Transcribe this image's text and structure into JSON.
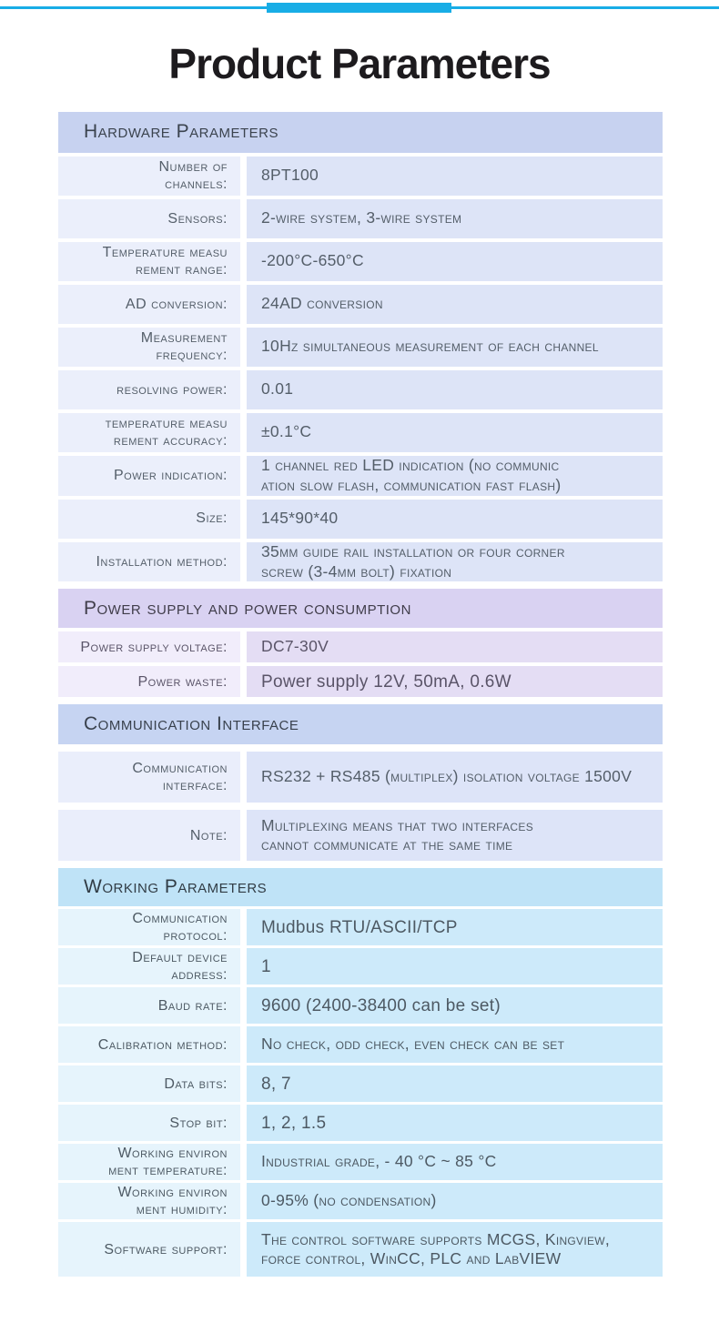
{
  "page": {
    "title": "Product Parameters",
    "accent_color": "#18ade6",
    "background_color": "#ffffff",
    "title_color": "#1d1b1e"
  },
  "sections": [
    {
      "id": "hardware",
      "title": "Hardware Parameters",
      "colors": {
        "header_bg": "#c7d2f0",
        "header_text": "#3b434e",
        "label_bg": "#ebeffb",
        "value_bg": "#dde4f7",
        "text": "#545e69"
      },
      "rows": [
        {
          "label": "Number of\nchannels:",
          "value": "8PT100"
        },
        {
          "label": "Sensors:",
          "value": "2-wire system, 3-wire system"
        },
        {
          "label": "Temperature measu\nrement range:",
          "value": "-200°C-650°C"
        },
        {
          "label": "AD conversion:",
          "value": "24AD conversion"
        },
        {
          "label": "Measurement\nfrequency:",
          "value": "10Hz simultaneous measurement of each channel"
        },
        {
          "label": "resolving power:",
          "value": "0.01"
        },
        {
          "label": "temperature measu\nrement accuracy:",
          "value": "±0.1°C"
        },
        {
          "label": "Power indication:",
          "value": "1 channel red LED indication (no communic\nation slow flash, communication fast flash)"
        },
        {
          "label": "Size:",
          "value": "145*90*40"
        },
        {
          "label": "Installation method:",
          "value": "35mm guide rail installation or four corner\nscrew (3-4mm bolt) fixation"
        }
      ]
    },
    {
      "id": "power",
      "title": "Power supply and power consumption",
      "colors": {
        "header_bg": "#d9d2f2",
        "header_text": "#403d4a",
        "label_bg": "#f1edfb",
        "value_bg": "#e4ddf4",
        "text": "#5a5468"
      },
      "rows": [
        {
          "label": "Power supply voltage:",
          "value": "DC7-30V"
        },
        {
          "label": "Power waste:",
          "value": "Power supply 12V, 50mA, 0.6W",
          "plain": true
        }
      ]
    },
    {
      "id": "comm",
      "title": "Communication Interface",
      "colors": {
        "header_bg": "#c6d4f2",
        "header_text": "#39414d",
        "label_bg": "#eaeefb",
        "value_bg": "#dde4f8",
        "text": "#545e69"
      },
      "rows": [
        {
          "label": "Communication\ninterface:",
          "value": "RS232 + RS485 (multiplex) isolation voltage 1500V"
        },
        {
          "label": "Note:",
          "value": "Multiplexing means that two interfaces\ncannot communicate at the same time"
        }
      ]
    },
    {
      "id": "working",
      "title": "Working Parameters",
      "colors": {
        "header_bg": "#bfe3f7",
        "header_text": "#313c45",
        "label_bg": "#e6f4fc",
        "value_bg": "#cdeafa",
        "text": "#4d5963"
      },
      "rows": [
        {
          "label": "Communication\nprotocol:",
          "value": "Mudbus RTU/ASCII/TCP",
          "plain": true
        },
        {
          "label": "Default device\naddress:",
          "value": "1",
          "plain": true
        },
        {
          "label": "Baud rate:",
          "value": "9600 (2400-38400 can be set)",
          "plain": true
        },
        {
          "label": "Calibration method:",
          "value": "No check, odd check, even check can be set"
        },
        {
          "label": "Data bits:",
          "value": "8, 7",
          "plain": true
        },
        {
          "label": "Stop bit:",
          "value": "1, 2, 1.5",
          "plain": true
        },
        {
          "label": "Working environ\nment temperature:",
          "value": "Industrial grade, - 40 °C ~ 85 °C"
        },
        {
          "label": "Working environ\nment humidity:",
          "value": "0-95% (no condensation)"
        },
        {
          "label": "Software support:",
          "value": "The control software supports MCGS, Kingview,\nforce control, WinCC, PLC and LabVIEW"
        }
      ]
    }
  ]
}
